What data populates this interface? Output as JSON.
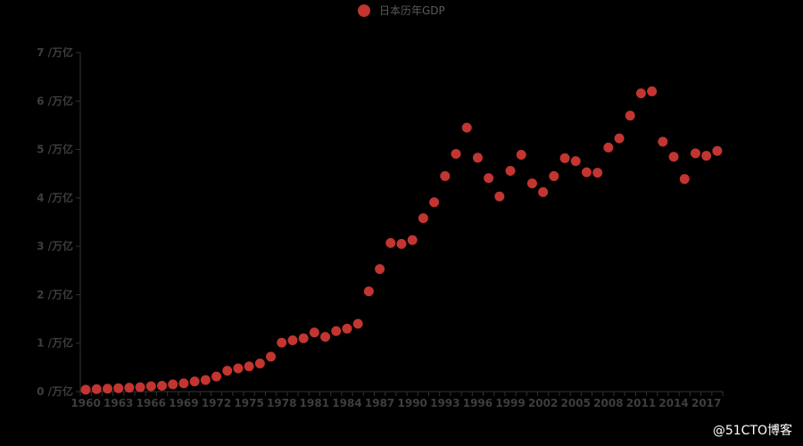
{
  "chart_data": {
    "type": "scatter",
    "title": "",
    "xlabel": "",
    "ylabel": "",
    "series": [
      {
        "name": "日本历年GDP",
        "color": "#c23531",
        "x": [
          1960,
          1961,
          1962,
          1963,
          1964,
          1965,
          1966,
          1967,
          1968,
          1969,
          1970,
          1971,
          1972,
          1973,
          1974,
          1975,
          1976,
          1977,
          1978,
          1979,
          1980,
          1981,
          1982,
          1983,
          1984,
          1985,
          1986,
          1987,
          1988,
          1989,
          1990,
          1991,
          1992,
          1993,
          1994,
          1995,
          1996,
          1997,
          1998,
          1999,
          2000,
          2001,
          2002,
          2003,
          2004,
          2005,
          2006,
          2007,
          2008,
          2009,
          2010,
          2011,
          2012,
          2013,
          2014,
          2015,
          2016,
          2017,
          2018
        ],
        "values": [
          0.04,
          0.05,
          0.06,
          0.07,
          0.08,
          0.09,
          0.11,
          0.12,
          0.15,
          0.17,
          0.21,
          0.24,
          0.31,
          0.43,
          0.48,
          0.52,
          0.58,
          0.72,
          1.01,
          1.06,
          1.1,
          1.22,
          1.13,
          1.25,
          1.3,
          1.4,
          2.07,
          2.53,
          3.07,
          3.05,
          3.13,
          3.58,
          3.91,
          4.45,
          4.91,
          5.45,
          4.83,
          4.41,
          4.03,
          4.56,
          4.89,
          4.3,
          4.12,
          4.45,
          4.82,
          4.76,
          4.53,
          4.52,
          5.04,
          5.23,
          5.7,
          6.16,
          6.2,
          5.16,
          4.85,
          4.39,
          4.92,
          4.87,
          4.97
        ]
      }
    ],
    "x_tick_labels": [
      "1960",
      "1963",
      "1966",
      "1969",
      "1972",
      "1975",
      "1978",
      "1981",
      "1984",
      "1987",
      "1990",
      "1993",
      "1996",
      "1999",
      "2002",
      "2005",
      "2008",
      "2011",
      "2014",
      "2017"
    ],
    "y_tick_labels": [
      "0 /万亿",
      "1 /万亿",
      "2 /万亿",
      "3 /万亿",
      "4 /万亿",
      "5 /万亿",
      "6 /万亿",
      "7 /万亿"
    ],
    "ylim": [
      0,
      7
    ],
    "grid": false,
    "legend_position": "top-center"
  },
  "watermark": "@51CTO博客",
  "colors": {
    "background": "#000000",
    "axis": "#333333",
    "tick_label": "#3d3d3d",
    "legend_text": "#5a5a5a"
  }
}
